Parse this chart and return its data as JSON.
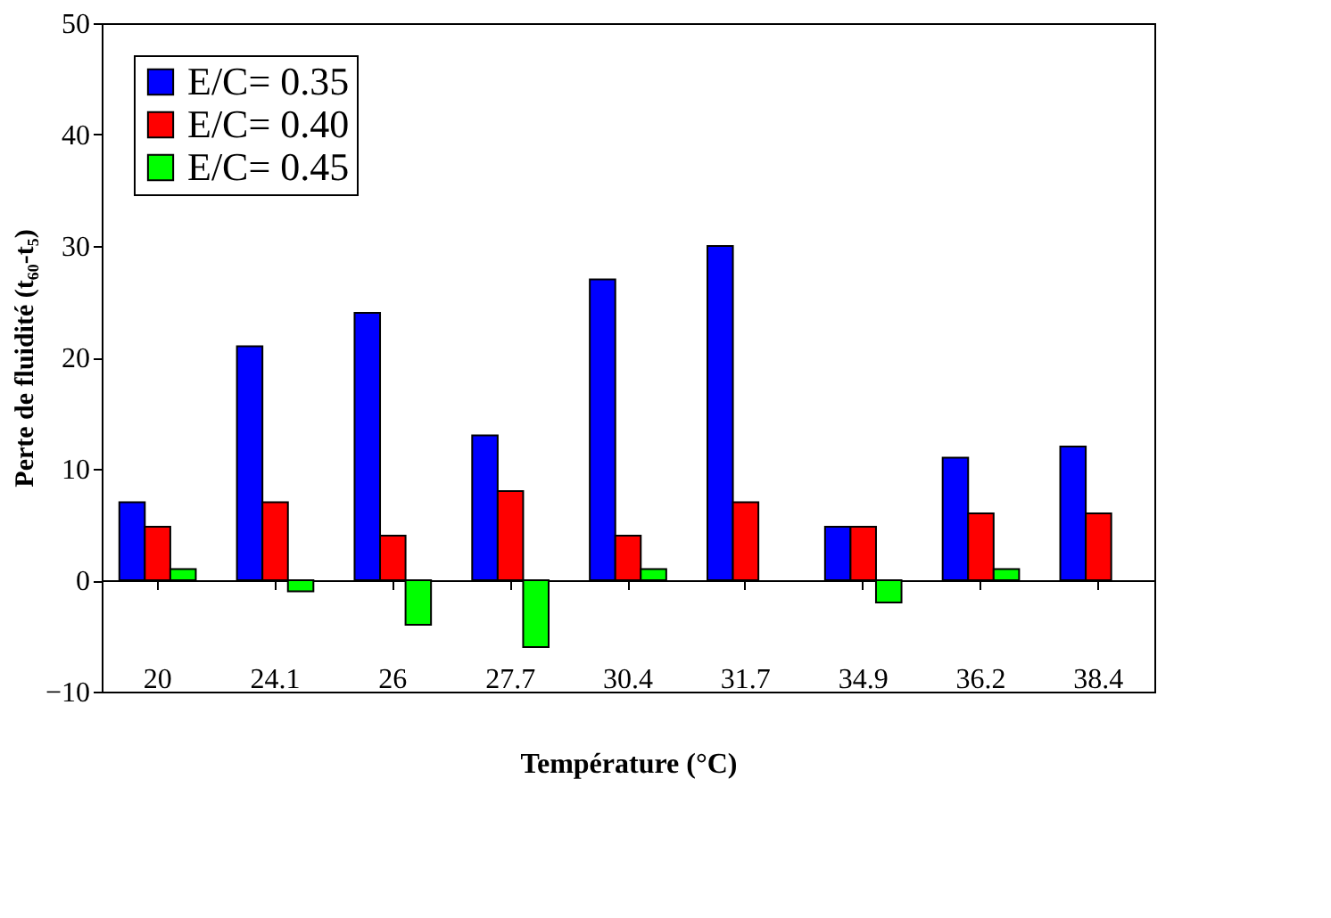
{
  "chart_data": {
    "type": "bar",
    "xlabel": "Température (°C)",
    "ylabel": "Perte de fluidité (t₆₀-t₅)",
    "categories": [
      "20",
      "24.1",
      "26",
      "27.7",
      "30.4",
      "31.7",
      "34.9",
      "36.2",
      "38.4"
    ],
    "series": [
      {
        "name": "E/C= 0.35",
        "color": "#0000ff",
        "values": [
          7,
          21,
          24,
          13,
          27,
          30,
          4.8,
          11,
          12
        ]
      },
      {
        "name": "E/C= 0.40",
        "color": "#ff0000",
        "values": [
          4.8,
          7,
          4,
          8,
          4,
          7,
          4.8,
          6,
          6
        ]
      },
      {
        "name": "E/C= 0.45",
        "color": "#00ff00",
        "values": [
          1,
          -1,
          -4,
          -6,
          1,
          null,
          -2,
          1,
          null
        ]
      }
    ],
    "ylim": [
      -10,
      50
    ],
    "yticks": [
      -10,
      0,
      10,
      20,
      30,
      40,
      50
    ],
    "legend": "top left"
  }
}
